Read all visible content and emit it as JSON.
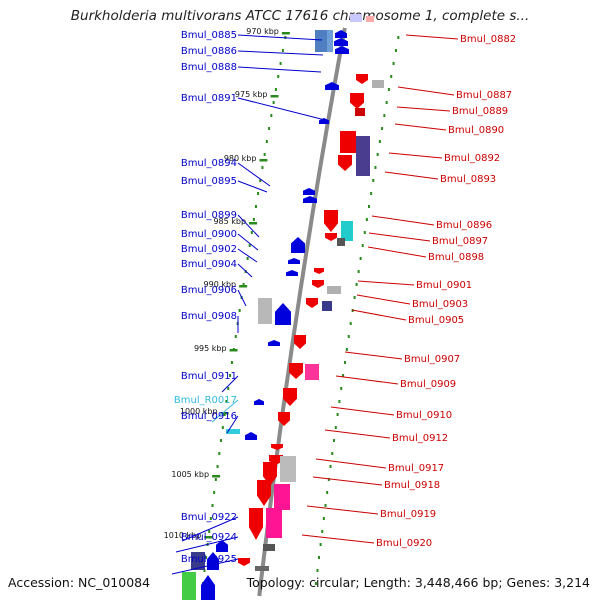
{
  "title": "Burkholderia multivorans ATCC 17616 chromosome 1, complete s...",
  "accession": "Accession: NC_010084",
  "topology": "Topology: circular; Length: 3,448,466 bp; Genes: 3,214",
  "colors": {
    "backbone": "#8a8a8a",
    "tick": "#2b8a1e",
    "left_label": "#0000cc",
    "right_label": "#cc0000",
    "rna_label": "#33bbdd"
  },
  "kbp_labels": [
    "970 kbp",
    "975 kbp",
    "980 kbp",
    "985 kbp",
    "990 kbp",
    "995 kbp",
    "1000 kbp",
    "1005 kbp",
    "1010 kbp"
  ],
  "left_genes": [
    {
      "name": "Bmul_0885",
      "color": "#0000cc"
    },
    {
      "name": "Bmul_0886",
      "color": "#0000cc"
    },
    {
      "name": "Bmul_0888",
      "color": "#0000cc"
    },
    {
      "name": "Bmul_0891",
      "color": "#0000cc"
    },
    {
      "name": "Bmul_0894",
      "color": "#0000cc"
    },
    {
      "name": "Bmul_0895",
      "color": "#0000cc"
    },
    {
      "name": "Bmul_0899",
      "color": "#0000cc"
    },
    {
      "name": "Bmul_0900",
      "color": "#0000cc"
    },
    {
      "name": "Bmul_0902",
      "color": "#0000cc"
    },
    {
      "name": "Bmul_0904",
      "color": "#0000cc"
    },
    {
      "name": "Bmul_0906",
      "color": "#0000cc"
    },
    {
      "name": "Bmul_0908",
      "color": "#0000cc"
    },
    {
      "name": "Bmul_0911",
      "color": "#0000cc"
    },
    {
      "name": "Bmul_R0017",
      "color": "#33bbdd"
    },
    {
      "name": "Bmul_0916",
      "color": "#0000cc"
    },
    {
      "name": "Bmul_0922",
      "color": "#0000cc"
    },
    {
      "name": "Bmul_0924",
      "color": "#0000cc"
    },
    {
      "name": "Bmul_0925",
      "color": "#0000cc"
    }
  ],
  "right_genes": [
    {
      "name": "Bmul_0882"
    },
    {
      "name": "Bmul_0887"
    },
    {
      "name": "Bmul_0889"
    },
    {
      "name": "Bmul_0890"
    },
    {
      "name": "Bmul_0892"
    },
    {
      "name": "Bmul_0893"
    },
    {
      "name": "Bmul_0896"
    },
    {
      "name": "Bmul_0897"
    },
    {
      "name": "Bmul_0898"
    },
    {
      "name": "Bmul_0901"
    },
    {
      "name": "Bmul_0903"
    },
    {
      "name": "Bmul_0905"
    },
    {
      "name": "Bmul_0907"
    },
    {
      "name": "Bmul_0909"
    },
    {
      "name": "Bmul_0910"
    },
    {
      "name": "Bmul_0912"
    },
    {
      "name": "Bmul_0917"
    },
    {
      "name": "Bmul_0918"
    },
    {
      "name": "Bmul_0919"
    },
    {
      "name": "Bmul_0920"
    }
  ]
}
